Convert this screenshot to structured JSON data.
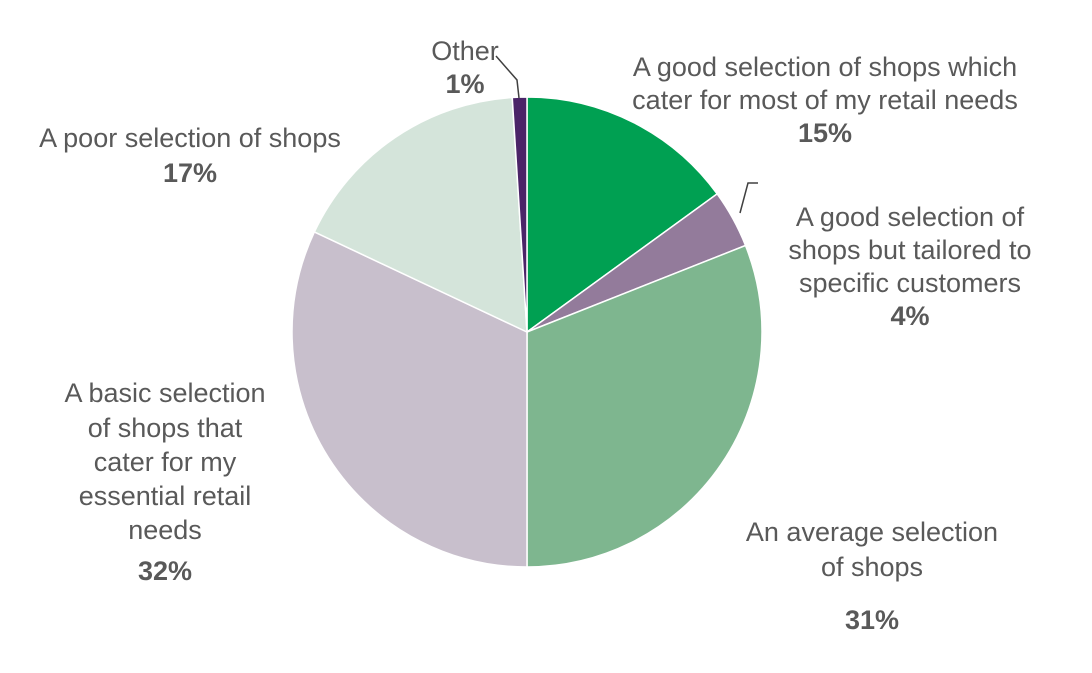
{
  "chart_data": {
    "type": "pie",
    "title": "",
    "slices": [
      {
        "label": "A good selection of shops which\ncater for most of my retail needs",
        "percent_label": "15%",
        "value": 15,
        "color": "#00A052"
      },
      {
        "label": "A good selection of\nshops but tailored to\nspecific customers",
        "percent_label": "4%",
        "value": 4,
        "color": "#937B9B"
      },
      {
        "label": "An average selection\nof shops",
        "percent_label": "31%",
        "value": 31,
        "color": "#7EB68F"
      },
      {
        "label": "A basic selection\nof shops that\ncater for my\nessential retail\nneeds",
        "percent_label": "32%",
        "value": 32,
        "color": "#C8BFCC"
      },
      {
        "label": "A poor selection of shops",
        "percent_label": "17%",
        "value": 17,
        "color": "#D4E4DA"
      },
      {
        "label": "Other",
        "percent_label": "1%",
        "value": 1,
        "color": "#4B2468"
      }
    ]
  }
}
